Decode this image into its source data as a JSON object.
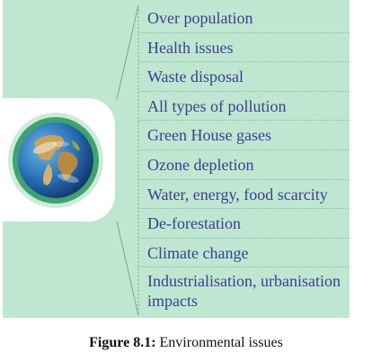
{
  "diagram": {
    "issues": [
      "Over population",
      "Health issues",
      "Waste disposal",
      "All types of pollution",
      "Green House gases",
      "Ozone depletion",
      "Water, energy, food scarcity",
      "De-forestation",
      "Climate change",
      "Industrialisation, urbanisation impacts"
    ],
    "colors": {
      "panel": "#bfe6d0",
      "text": "#3a3f8f",
      "ring": "#3fa36f"
    },
    "icon": "earth-globe-icon"
  },
  "caption": {
    "label": "Figure 8.1:",
    "text": " Environmental issues"
  }
}
